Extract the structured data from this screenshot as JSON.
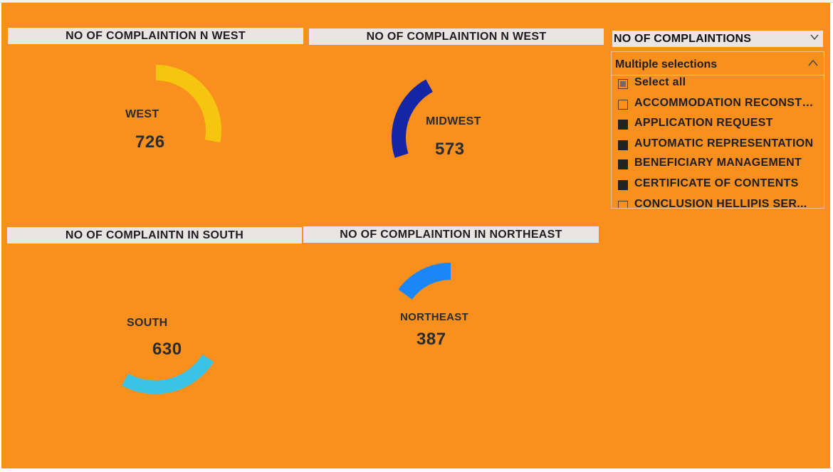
{
  "cards": [
    {
      "title": "NO OF COMPLAINTION N WEST",
      "region": "WEST",
      "value": "726",
      "color": "#f5c510",
      "share": 0.28
    },
    {
      "title": "NO OF COMPLAINTION N WEST",
      "region": "MIDWEST",
      "value": "573",
      "color": "#1426a3",
      "share": 0.22
    },
    {
      "title": "NO OF COMPLAINTN IN SOUTH",
      "region": "SOUTH",
      "value": "630",
      "color": "#3bc3e6",
      "share": 0.24
    },
    {
      "title": "NO OF COMPLAINTION IN NORTHEAST",
      "region": "NORTHEAST",
      "value": "387",
      "color": "#1a86f7",
      "share": 0.15
    }
  ],
  "slicer": {
    "title": "NO OF COMPLAINTIONS",
    "selection_mode": "Multiple selections",
    "items": [
      {
        "label": "Select all",
        "state": "partial"
      },
      {
        "label": "ACCOMMODATION RECONSTRUCTION",
        "state": "unchecked"
      },
      {
        "label": "APPLICATION REQUEST",
        "state": "checked"
      },
      {
        "label": "AUTOMATIC REPRESENTATION",
        "state": "checked"
      },
      {
        "label": "BENEFICIARY MANAGEMENT",
        "state": "checked"
      },
      {
        "label": "CERTIFICATE OF CONTENTS",
        "state": "checked"
      },
      {
        "label": "CONCLUSION HELLIPIS SER...",
        "state": "unchecked"
      }
    ]
  },
  "colors": {
    "canvas": "#f98f1d",
    "title_bar": "#ebe4e4"
  }
}
